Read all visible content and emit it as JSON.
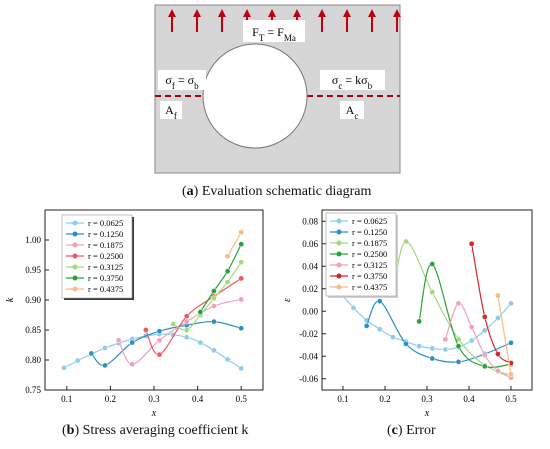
{
  "schematic": {
    "caption_letter": "a",
    "caption_text": "Evaluation schematic diagram",
    "label_top": "F_T = F_Ma",
    "label_left_eq": "σ_f = σ_b",
    "label_left_area": "A_f",
    "label_right_eq": "σ_c = kσ_b",
    "label_right_area": "A_c",
    "colors": {
      "plate": "#d6d6d6",
      "arrow": "#c0000f",
      "section": "#b0000b"
    }
  },
  "panel_b_caption": {
    "letter": "b",
    "text": "Stress averaging coefficient k"
  },
  "panel_c_caption": {
    "letter": "c",
    "text": "Error"
  },
  "legend_values": [
    "r = 0.0625",
    "r = 0.1250",
    "r = 0.1875",
    "r = 0.2500",
    "r = 0.3125",
    "r = 0.3750",
    "r = 0.4375"
  ],
  "chart_data": [
    {
      "type": "line",
      "xlabel": "x",
      "ylabel": "k",
      "xlim": [
        0.05,
        0.55
      ],
      "ylim": [
        0.75,
        1.05
      ],
      "xticks": [
        "0.1",
        "0.2",
        "0.3",
        "0.4",
        "0.5"
      ],
      "yticks": [
        "0.75",
        "0.80",
        "0.85",
        "0.90",
        "0.95",
        "1.00"
      ],
      "legend_position": "top-left",
      "series": [
        {
          "name": "r = 0.0625",
          "color": "#8ecbee",
          "x": [
            0.0938,
            0.125,
            0.1563,
            0.1875,
            0.2188,
            0.25,
            0.2813,
            0.3125,
            0.3438,
            0.375,
            0.4063,
            0.4375,
            0.4688,
            0.5
          ],
          "y": [
            0.787,
            0.799,
            0.81,
            0.82,
            0.828,
            0.835,
            0.84,
            0.843,
            0.842,
            0.838,
            0.829,
            0.816,
            0.801,
            0.786
          ]
        },
        {
          "name": "r = 0.1250",
          "color": "#2b8fc9",
          "x": [
            0.1563,
            0.1875,
            0.25,
            0.3125,
            0.375,
            0.4375,
            0.5
          ],
          "y": [
            0.811,
            0.791,
            0.829,
            0.848,
            0.858,
            0.864,
            0.853
          ]
        },
        {
          "name": "r = 0.1875",
          "color": "#f2a0b8",
          "x": [
            0.2188,
            0.25,
            0.3125,
            0.375,
            0.4375,
            0.5
          ],
          "y": [
            0.833,
            0.793,
            0.833,
            0.864,
            0.89,
            0.901
          ]
        },
        {
          "name": "r = 0.2500",
          "color": "#e75c63",
          "x": [
            0.2813,
            0.3125,
            0.375,
            0.4375,
            0.5
          ],
          "y": [
            0.85,
            0.809,
            0.873,
            0.906,
            0.936
          ]
        },
        {
          "name": "r = 0.3125",
          "color": "#a3d97a",
          "x": [
            0.3438,
            0.375,
            0.4063,
            0.4375,
            0.4688,
            0.5
          ],
          "y": [
            0.86,
            0.85,
            0.875,
            0.903,
            0.93,
            0.963
          ]
        },
        {
          "name": "r = 0.3750",
          "color": "#27a33a",
          "x": [
            0.4063,
            0.4375,
            0.4688,
            0.5
          ],
          "y": [
            0.88,
            0.915,
            0.948,
            0.993
          ]
        },
        {
          "name": "r = 0.4375",
          "color": "#f8bb82",
          "x": [
            0.4688,
            0.5
          ],
          "y": [
            0.973,
            1.013
          ]
        }
      ]
    },
    {
      "type": "line",
      "xlabel": "x",
      "ylabel": "ε",
      "xlim": [
        0.05,
        0.55
      ],
      "ylim": [
        -0.07,
        0.09
      ],
      "xticks": [
        "0.1",
        "0.2",
        "0.3",
        "0.4",
        "0.5"
      ],
      "yticks": [
        "-0.06",
        "-0.04",
        "-0.02",
        "0.00",
        "0.02",
        "0.04",
        "0.06",
        "0.08"
      ],
      "legend_position": "top-left",
      "series": [
        {
          "name": "r = 0.0625",
          "color": "#8ecbee",
          "x": [
            0.0938,
            0.125,
            0.1563,
            0.1875,
            0.2188,
            0.25,
            0.2813,
            0.3125,
            0.3438,
            0.375,
            0.4063,
            0.4375,
            0.4688,
            0.5
          ],
          "y": [
            0.016,
            0.003,
            -0.008,
            -0.016,
            -0.023,
            -0.027,
            -0.031,
            -0.033,
            -0.034,
            -0.032,
            -0.026,
            -0.017,
            -0.006,
            0.007
          ]
        },
        {
          "name": "r = 0.1250",
          "color": "#2b8fc9",
          "x": [
            0.1563,
            0.1875,
            0.25,
            0.3125,
            0.375,
            0.4375,
            0.5
          ],
          "y": [
            -0.013,
            0.009,
            -0.029,
            -0.042,
            -0.045,
            -0.038,
            -0.028
          ]
        },
        {
          "name": "r = 0.1875",
          "color": "#a3d97a",
          "x": [
            0.2188,
            0.25,
            0.3125,
            0.375,
            0.4375,
            0.5
          ],
          "y": [
            0.015,
            0.062,
            0.017,
            -0.025,
            -0.048,
            -0.057
          ]
        },
        {
          "name": "r = 0.2500",
          "color": "#27a33a",
          "x": [
            0.2813,
            0.3125,
            0.375,
            0.4375,
            0.5
          ],
          "y": [
            -0.009,
            0.042,
            -0.031,
            -0.049,
            -0.047
          ]
        },
        {
          "name": "r = 0.3125",
          "color": "#f2a0b8",
          "x": [
            0.3438,
            0.375,
            0.4063,
            0.4375,
            0.4688,
            0.5
          ],
          "y": [
            -0.025,
            0.007,
            -0.014,
            -0.039,
            -0.053,
            -0.059
          ]
        },
        {
          "name": "r = 0.3750",
          "color": "#d62728",
          "x": [
            0.4063,
            0.4375,
            0.4688,
            0.5
          ],
          "y": [
            0.06,
            -0.005,
            -0.038,
            -0.046
          ]
        },
        {
          "name": "r = 0.4375",
          "color": "#f8bb82",
          "x": [
            0.4688,
            0.5
          ],
          "y": [
            0.014,
            -0.056
          ]
        }
      ]
    }
  ]
}
